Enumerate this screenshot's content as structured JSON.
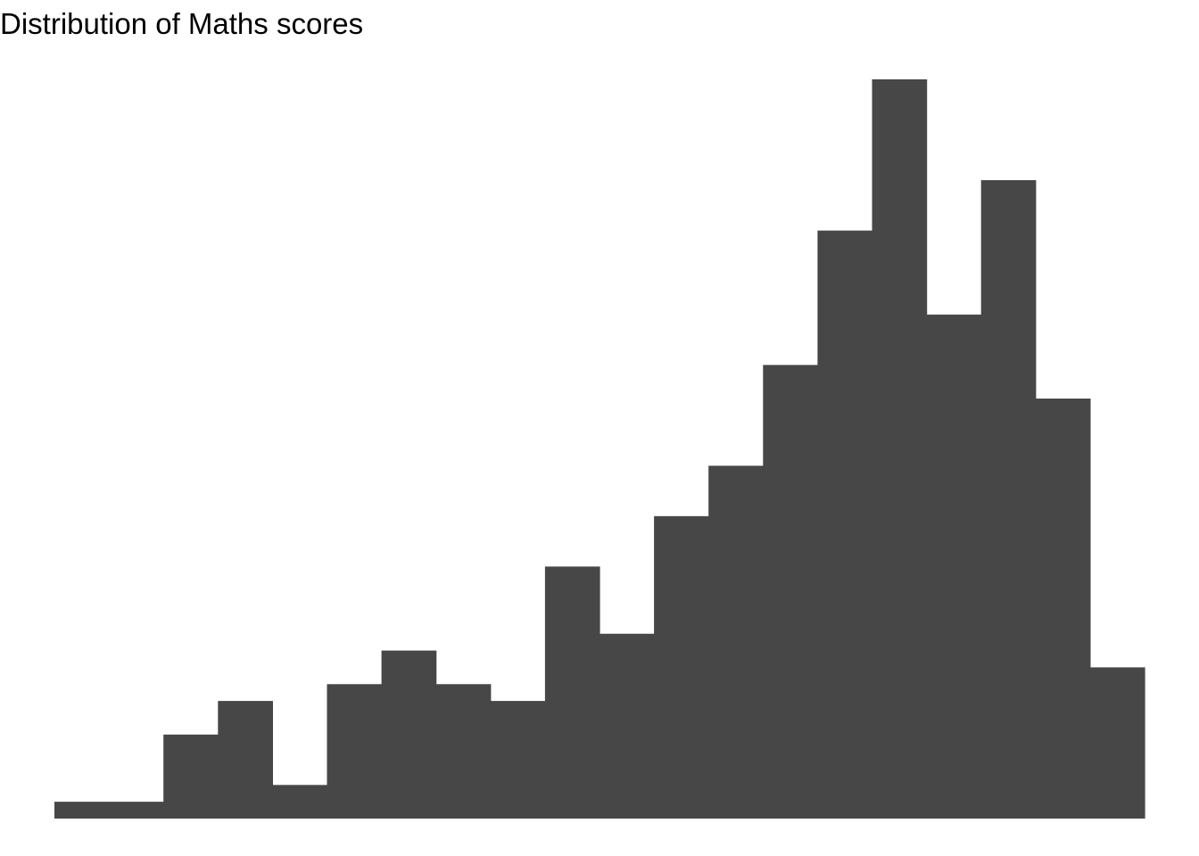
{
  "chart_data": {
    "type": "bar",
    "title": "Distribution of Maths scores",
    "xlabel": "",
    "ylabel": "",
    "grid": false,
    "bar_color": "#474747",
    "bin_count": 20,
    "values": [
      1,
      1,
      5,
      7,
      2,
      8,
      10,
      8,
      7,
      15,
      11,
      18,
      21,
      27,
      35,
      44,
      30,
      38,
      25,
      9
    ],
    "ylim": [
      0,
      44
    ]
  }
}
